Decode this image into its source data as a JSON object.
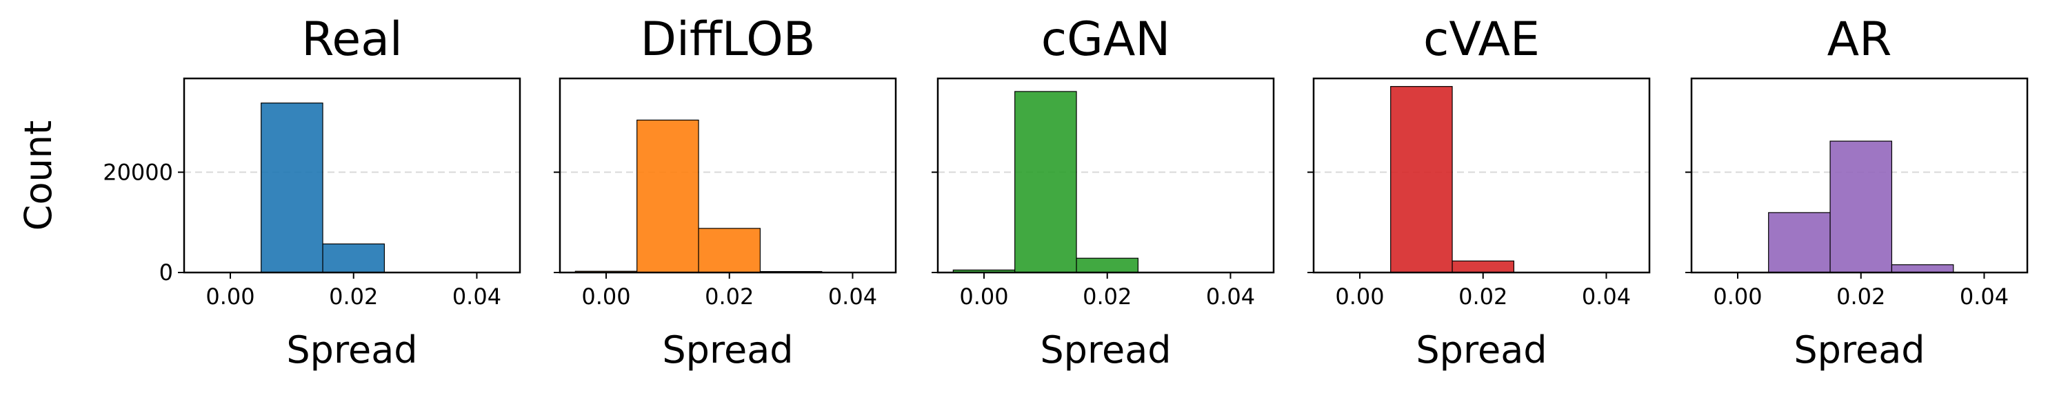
{
  "chart_data": [
    {
      "type": "histogram",
      "title": "Real",
      "xlabel": "Spread",
      "ylabel": "Count",
      "color": "#1f77b4",
      "bins": [
        -0.005,
        0.005,
        0.015,
        0.025,
        0.035,
        0.045
      ],
      "values": [
        0,
        33800,
        5700,
        0,
        0
      ],
      "xlim": [
        -0.0075,
        0.047
      ],
      "ylim": [
        0,
        38700
      ],
      "xticks": [
        {
          "value": 0,
          "label": "0.00"
        },
        {
          "value": 0.02,
          "label": "0.02"
        },
        {
          "value": 0.04,
          "label": "0.04"
        }
      ],
      "yticks": [
        0,
        20000
      ],
      "grid": true
    },
    {
      "type": "histogram",
      "title": "DiffLOB",
      "xlabel": "Spread",
      "color": "#ff7f0e",
      "bins": [
        -0.005,
        0.005,
        0.015,
        0.025,
        0.035,
        0.045
      ],
      "values": [
        250,
        30400,
        8800,
        200,
        0
      ],
      "xlim": [
        -0.0075,
        0.047
      ],
      "ylim": [
        0,
        38700
      ],
      "xticks": [
        {
          "value": 0,
          "label": "0.00"
        },
        {
          "value": 0.02,
          "label": "0.02"
        },
        {
          "value": 0.04,
          "label": "0.04"
        }
      ],
      "yticks": [
        0,
        20000
      ],
      "grid": true
    },
    {
      "type": "histogram",
      "title": "cGAN",
      "xlabel": "Spread",
      "color": "#2ca02c",
      "bins": [
        -0.005,
        0.005,
        0.015,
        0.025,
        0.035,
        0.045
      ],
      "values": [
        500,
        36100,
        2850,
        0,
        0
      ],
      "xlim": [
        -0.0075,
        0.047
      ],
      "ylim": [
        0,
        38700
      ],
      "xticks": [
        {
          "value": 0,
          "label": "0.00"
        },
        {
          "value": 0.02,
          "label": "0.02"
        },
        {
          "value": 0.04,
          "label": "0.04"
        }
      ],
      "yticks": [
        0,
        20000
      ],
      "grid": true
    },
    {
      "type": "histogram",
      "title": "cVAE",
      "xlabel": "Spread",
      "color": "#d62728",
      "bins": [
        -0.005,
        0.005,
        0.015,
        0.025,
        0.035,
        0.045
      ],
      "values": [
        0,
        37100,
        2300,
        0,
        0
      ],
      "xlim": [
        -0.0075,
        0.047
      ],
      "ylim": [
        0,
        38700
      ],
      "xticks": [
        {
          "value": 0,
          "label": "0.00"
        },
        {
          "value": 0.02,
          "label": "0.02"
        },
        {
          "value": 0.04,
          "label": "0.04"
        }
      ],
      "yticks": [
        0,
        20000
      ],
      "grid": true
    },
    {
      "type": "histogram",
      "title": "AR",
      "xlabel": "Spread",
      "color": "#9467bd",
      "bins": [
        -0.005,
        0.005,
        0.015,
        0.025,
        0.035,
        0.045
      ],
      "values": [
        0,
        11950,
        26200,
        1550,
        0
      ],
      "xlim": [
        -0.0075,
        0.047
      ],
      "ylim": [
        0,
        38700
      ],
      "xticks": [
        {
          "value": 0,
          "label": "0.00"
        },
        {
          "value": 0.02,
          "label": "0.02"
        },
        {
          "value": 0.04,
          "label": "0.04"
        }
      ],
      "yticks": [
        0,
        20000
      ],
      "grid": true
    }
  ]
}
